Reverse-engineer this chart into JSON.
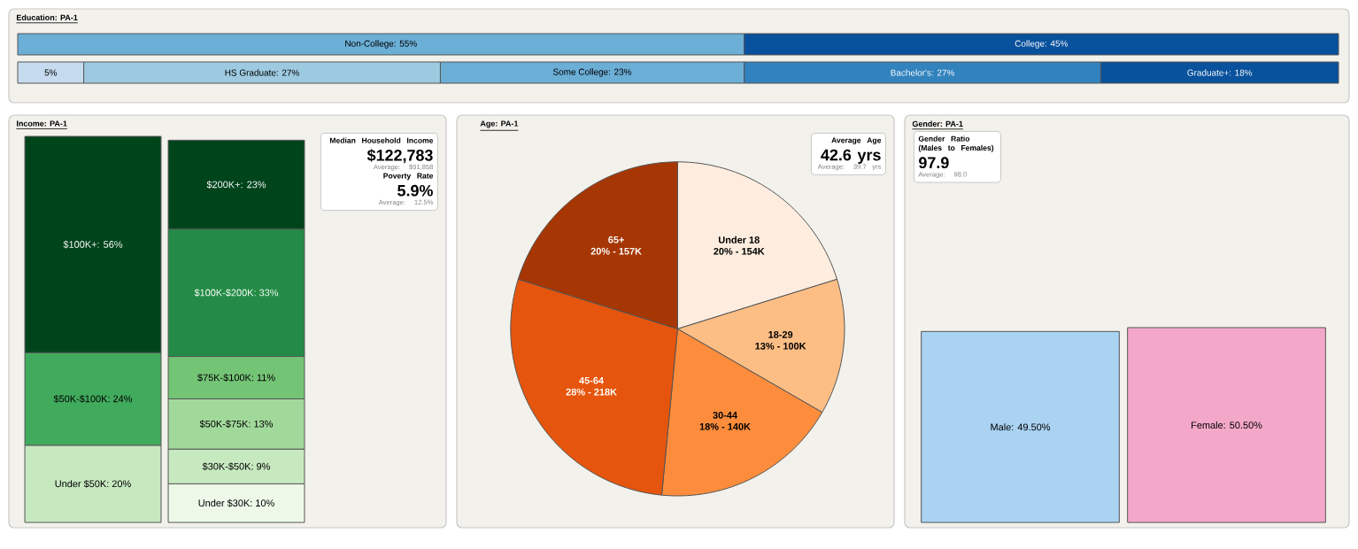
{
  "chart_data": [
    {
      "type": "bar",
      "title": "Education: PA-1",
      "orientation": "horizontal",
      "stacked": true,
      "categories": [
        null,
        null
      ],
      "xlim": [
        0,
        100
      ],
      "tick_labels": false,
      "series": [
        {
          "color": "#6baed6",
          "values": [
            55,
            null
          ],
          "value_labels": [
            "Non-College: 55%",
            null
          ]
        },
        {
          "color": "#08519c",
          "values": [
            45,
            null
          ],
          "value_labels": [
            "College: 45%",
            null
          ]
        },
        {
          "color": "#c6dbef",
          "values": [
            null,
            5
          ],
          "value_labels": [
            null,
            "5%"
          ]
        },
        {
          "color": "#9ecae1",
          "values": [
            null,
            27
          ],
          "value_labels": [
            null,
            "HS Graduate: 27%"
          ]
        },
        {
          "color": "#6baed6",
          "values": [
            null,
            23
          ],
          "value_labels": [
            null,
            "Some College: 23%"
          ]
        },
        {
          "color": "#3182bd",
          "values": [
            null,
            27
          ],
          "value_labels": [
            null,
            "Bachelor's: 27%"
          ]
        },
        {
          "color": "#08519c",
          "values": [
            null,
            18
          ],
          "value_labels": [
            null,
            "Graduate+: 18%"
          ]
        }
      ]
    },
    {
      "type": "bar",
      "title": "Income: PA-1",
      "stacked": true,
      "categories": [
        null,
        null
      ],
      "ylim": [
        0,
        100
      ],
      "tick_labels": false,
      "annotations": [
        "Median Household Income",
        "$122,783",
        "Average: $91,858",
        "Poverty Rate",
        "5.9%",
        "Average: 12.5%"
      ],
      "series": [
        {
          "color": "#c7e9c0",
          "values": [
            20,
            null
          ],
          "value_labels": [
            "Under $50K: 20%",
            null
          ]
        },
        {
          "color": "#41ab5d",
          "values": [
            24,
            null
          ],
          "value_labels": [
            "$50K-$100K: 24%",
            null
          ]
        },
        {
          "color": "#00441b",
          "values": [
            56,
            null
          ],
          "value_labels": [
            "$100K+: 56%",
            null
          ]
        },
        {
          "color": "#edf8e9",
          "values": [
            null,
            10
          ],
          "value_labels": [
            null,
            "Under $30K: 10%"
          ]
        },
        {
          "color": "#c7e9c0",
          "values": [
            null,
            9
          ],
          "value_labels": [
            null,
            "$30K-$50K: 9%"
          ]
        },
        {
          "color": "#a1d99b",
          "values": [
            null,
            13
          ],
          "value_labels": [
            null,
            "$50K-$75K: 13%"
          ]
        },
        {
          "color": "#74c476",
          "values": [
            null,
            11
          ],
          "value_labels": [
            null,
            "$75K-$100K: 11%"
          ]
        },
        {
          "color": "#238b45",
          "values": [
            null,
            33
          ],
          "value_labels": [
            null,
            "$100K-$200K: 33%"
          ]
        },
        {
          "color": "#00441b",
          "values": [
            null,
            23
          ],
          "value_labels": [
            null,
            "$200K+: 23%"
          ]
        }
      ]
    },
    {
      "type": "pie",
      "title": "Age: PA-1",
      "categories": [
        "Under 18",
        "18-29",
        "30-44",
        "45-64",
        "65+"
      ],
      "values": [
        20,
        13,
        18,
        28,
        20
      ],
      "colors": [
        "#feeddf",
        "#fdbe85",
        "#fd8d3c",
        "#e6550d",
        "#a63603"
      ],
      "value_labels": [
        "20% - 154K",
        "13% - 100K",
        "18% - 140K",
        "28% - 218K",
        "20% - 157K"
      ],
      "annotations": [
        "Average Age",
        "42.6 yrs",
        "Average: 39.7 yrs"
      ]
    },
    {
      "type": "bar",
      "title": "Gender: PA-1",
      "categories": [
        null,
        null
      ],
      "tick_labels": false,
      "values": [
        49.5,
        50.5
      ],
      "colors": [
        "#aad3f2",
        "#f4a8c9"
      ],
      "value_labels": [
        "Male: 49.50%",
        "Female: 50.50%"
      ],
      "annotations": [
        "Gender Ratio (Males to Females)",
        "97.9",
        "Average: 98.0"
      ]
    }
  ]
}
